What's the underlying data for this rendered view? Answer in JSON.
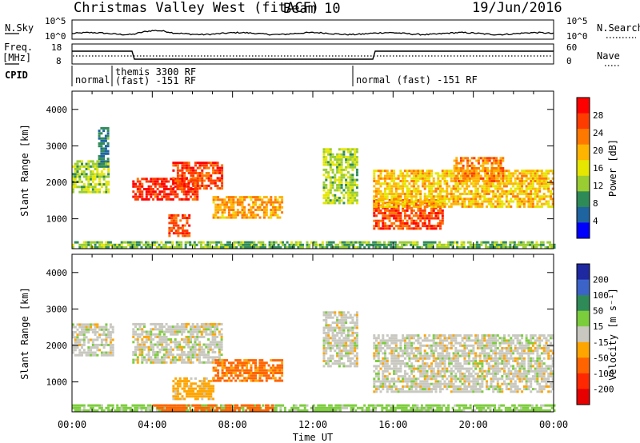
{
  "header": {
    "title": "Christmas Valley West (fitACF)",
    "beam": "Beam 10",
    "date": "19/Jun/2016"
  },
  "panels": {
    "nsky": {
      "label": "N.Sky",
      "right_label": "N.Search",
      "tick_top": "10^5",
      "tick_bottom": "10^0"
    },
    "freq": {
      "label_1": "Freq.",
      "label_2": "[MHz]",
      "right_label": "Nave",
      "left_ticks": [
        "18",
        "8"
      ],
      "right_ticks": [
        "60",
        "0"
      ]
    },
    "cpid": {
      "label": "CPID",
      "segments": [
        {
          "label": "normal",
          "start_h": 0.0
        },
        {
          "label": "themis 3300 RF",
          "label_2": "(fast) -151 RF",
          "start_h": 2.0
        },
        {
          "label": "normal (fast) -151 RF",
          "start_h": 14.0
        }
      ]
    }
  },
  "colorbars": {
    "power": {
      "label": "Power [dB]",
      "ticks": [
        "28",
        "24",
        "20",
        "16",
        "12",
        "8",
        "4"
      ],
      "colors": [
        "#ff0000",
        "#ff3c00",
        "#ff7800",
        "#ffb400",
        "#e6e600",
        "#9acd32",
        "#2e8b57",
        "#1e64a0",
        "#0000ff"
      ]
    },
    "velocity": {
      "label": "Velocity [m s⁻¹]",
      "ticks": [
        "200",
        "100",
        "50",
        "15",
        "-15",
        "-50",
        "-100",
        "-200"
      ],
      "colors": [
        "#1e28a0",
        "#3c64c8",
        "#2e8b57",
        "#7ccd3c",
        "#c8c8c0",
        "#ffa500",
        "#ff6400",
        "#ff2800",
        "#e60000"
      ]
    }
  },
  "chart_data": [
    {
      "type": "heatmap",
      "name": "Power",
      "ylabel": "Slant Range [km]",
      "xlabel": "Time UT",
      "x_ticks": [
        "00:00",
        "04:00",
        "08:00",
        "12:00",
        "16:00",
        "20:00",
        "00:00"
      ],
      "y_ticks": [
        "1000",
        "2000",
        "3000",
        "4000"
      ],
      "xlim_hours": [
        0,
        24
      ],
      "ylim_km": [
        180,
        4500
      ],
      "regions": [
        {
          "t": [
            0.0,
            1.8
          ],
          "r": [
            1700,
            2600
          ],
          "value": 12
        },
        {
          "t": [
            1.3,
            1.8
          ],
          "r": [
            2400,
            3500
          ],
          "value": 6
        },
        {
          "t": [
            3.0,
            6.2
          ],
          "r": [
            1500,
            2100
          ],
          "value": 28
        },
        {
          "t": [
            5.0,
            7.5
          ],
          "r": [
            1800,
            2550
          ],
          "value": 26
        },
        {
          "t": [
            4.8,
            5.8
          ],
          "r": [
            500,
            1100
          ],
          "value": 26
        },
        {
          "t": [
            7.0,
            10.5
          ],
          "r": [
            1000,
            1600
          ],
          "value": 20
        },
        {
          "t": [
            12.5,
            14.2
          ],
          "r": [
            1400,
            2900
          ],
          "value": 12
        },
        {
          "t": [
            15.0,
            18.5
          ],
          "r": [
            700,
            1500
          ],
          "value": 26
        },
        {
          "t": [
            15.0,
            24.0
          ],
          "r": [
            1300,
            2300
          ],
          "value": 18
        },
        {
          "t": [
            19.0,
            21.5
          ],
          "r": [
            2000,
            2700
          ],
          "value": 22
        },
        {
          "t": [
            0.0,
            24.0
          ],
          "r": [
            180,
            380
          ],
          "value": 10
        }
      ]
    },
    {
      "type": "heatmap",
      "name": "Velocity",
      "ylabel": "Slant Range [km]",
      "xlabel": "Time UT",
      "x_ticks": [
        "00:00",
        "04:00",
        "08:00",
        "12:00",
        "16:00",
        "20:00",
        "00:00"
      ],
      "y_ticks": [
        "1000",
        "2000",
        "3000",
        "4000"
      ],
      "xlim_hours": [
        0,
        24
      ],
      "ylim_km": [
        180,
        4500
      ],
      "regions": [
        {
          "t": [
            0.0,
            2.0
          ],
          "r": [
            1700,
            2600
          ],
          "value": 0
        },
        {
          "t": [
            3.0,
            7.5
          ],
          "r": [
            1500,
            2600
          ],
          "value": 0
        },
        {
          "t": [
            7.0,
            10.5
          ],
          "r": [
            1000,
            1600
          ],
          "value": -60
        },
        {
          "t": [
            5.0,
            7.0
          ],
          "r": [
            500,
            1100
          ],
          "value": -30
        },
        {
          "t": [
            12.5,
            14.2
          ],
          "r": [
            1400,
            2900
          ],
          "value": 0
        },
        {
          "t": [
            15.0,
            24.0
          ],
          "r": [
            700,
            2300
          ],
          "value": 0
        },
        {
          "t": [
            0.0,
            24.0
          ],
          "r": [
            180,
            380
          ],
          "value": 30
        },
        {
          "t": [
            4.0,
            10.0
          ],
          "r": [
            180,
            350
          ],
          "value": -80
        }
      ]
    }
  ]
}
